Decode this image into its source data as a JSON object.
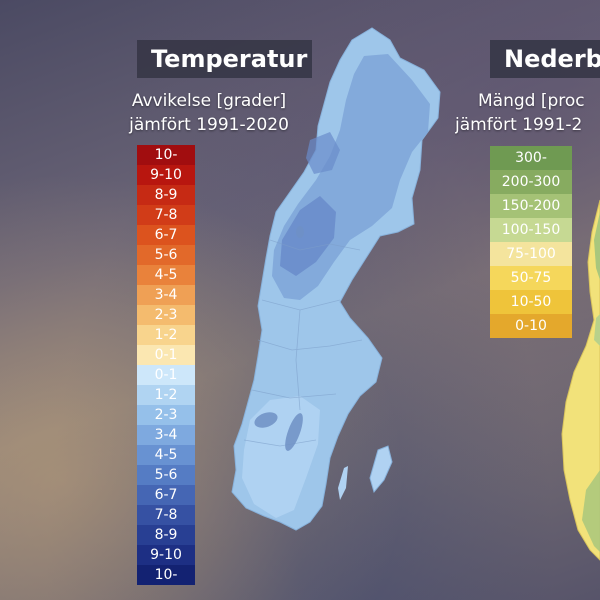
{
  "temperature": {
    "title": "Temperatur",
    "subtitle_line1": "Avvikelse [grader]",
    "subtitle_line2": "jämfört 1991-2020",
    "legend": [
      {
        "label": "10-",
        "color": "#a10d0f",
        "text": "#ffffff"
      },
      {
        "label": "9-10",
        "color": "#b8160f",
        "text": "#ffffff"
      },
      {
        "label": "8-9",
        "color": "#c62a14",
        "text": "#ffffff"
      },
      {
        "label": "7-8",
        "color": "#d13c18",
        "text": "#ffffff"
      },
      {
        "label": "6-7",
        "color": "#dc531e",
        "text": "#ffffff"
      },
      {
        "label": "5-6",
        "color": "#e2692a",
        "text": "#ffffff"
      },
      {
        "label": "4-5",
        "color": "#e9823b",
        "text": "#ffffff"
      },
      {
        "label": "3-4",
        "color": "#efa055",
        "text": "#ffffff"
      },
      {
        "label": "2-3",
        "color": "#f4bb6e",
        "text": "#ffffff"
      },
      {
        "label": "1-2",
        "color": "#f8d48d",
        "text": "#ffffff"
      },
      {
        "label": "0-1",
        "color": "#fbe7b1",
        "text": "#ffffff"
      },
      {
        "label": "0-1",
        "color": "#cde7fa",
        "text": "#ffffff"
      },
      {
        "label": "1-2",
        "color": "#b0d4f2",
        "text": "#ffffff"
      },
      {
        "label": "2-3",
        "color": "#95c0ea",
        "text": "#ffffff"
      },
      {
        "label": "3-4",
        "color": "#7ea9df",
        "text": "#ffffff"
      },
      {
        "label": "4-5",
        "color": "#6892d2",
        "text": "#ffffff"
      },
      {
        "label": "5-6",
        "color": "#557cc4",
        "text": "#ffffff"
      },
      {
        "label": "6-7",
        "color": "#4566b4",
        "text": "#ffffff"
      },
      {
        "label": "7-8",
        "color": "#3651a3",
        "text": "#ffffff"
      },
      {
        "label": "8-9",
        "color": "#283f93",
        "text": "#ffffff"
      },
      {
        "label": "9-10",
        "color": "#1d2f84",
        "text": "#ffffff"
      },
      {
        "label": "10-",
        "color": "#132272",
        "text": "#ffffff"
      }
    ]
  },
  "precipitation": {
    "title": "Nederbo",
    "subtitle_line1": "Mängd [proc",
    "subtitle_line2": "jämfört 1991-2",
    "legend": [
      {
        "label": "300-",
        "color": "#6f9a52",
        "text": "#ffffff"
      },
      {
        "label": "200-300",
        "color": "#87ab60",
        "text": "#ffffff"
      },
      {
        "label": "150-200",
        "color": "#a5c276",
        "text": "#ffffff"
      },
      {
        "label": "100-150",
        "color": "#c6d993",
        "text": "#ffffff"
      },
      {
        "label": "75-100",
        "color": "#f4e49d",
        "text": "#ffffff"
      },
      {
        "label": "50-75",
        "color": "#f5d75b",
        "text": "#ffffff"
      },
      {
        "label": "10-50",
        "color": "#efc43a",
        "text": "#ffffff"
      },
      {
        "label": "0-10",
        "color": "#e4a82c",
        "text": "#ffffff"
      }
    ]
  },
  "map_colors": {
    "temp_base": "#9ec6ea",
    "temp_dark": "#6f97d0",
    "temp_light": "#b9daf6",
    "precip_base": "#f2e27a",
    "precip_green": "#a9c77d"
  }
}
